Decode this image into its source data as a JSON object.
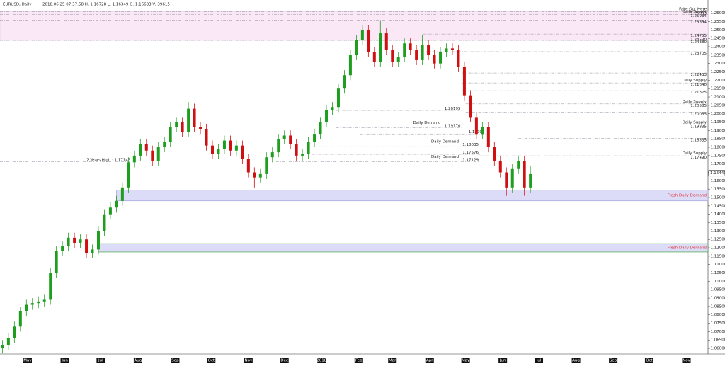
{
  "chart_data": {
    "type": "candlestick",
    "title": "EURUSD, Daily",
    "subtitle": "2018.06.25 07:37:58 H: 1.16728 L: 1.16349 O: 1.16633 V: 39615",
    "xlim": [
      0,
      590
    ],
    "ylim": [
      1.0575,
      1.2645
    ],
    "up_color": "#1e9e1e",
    "down_color": "#d01010",
    "candles": {
      "x": [
        2,
        7,
        12,
        17,
        22,
        27,
        32,
        37,
        42,
        47,
        52,
        57,
        62,
        67,
        72,
        77,
        82,
        87,
        92,
        97,
        102,
        107,
        112,
        117,
        122,
        127,
        132,
        137,
        142,
        147,
        152,
        157,
        162,
        167,
        172,
        177,
        182,
        187,
        192,
        197,
        202,
        207,
        212,
        217,
        222,
        227,
        232,
        237,
        242,
        247,
        252,
        257,
        262,
        267,
        272,
        277,
        282,
        287,
        292,
        297,
        302,
        307,
        312,
        317,
        322,
        327,
        332,
        337,
        342,
        347,
        352,
        357,
        362,
        367,
        372,
        377,
        382,
        387,
        392,
        397,
        402,
        407,
        412,
        417,
        422,
        427,
        432,
        437,
        442
      ],
      "open": [
        1.06,
        1.062,
        1.066,
        1.073,
        1.082,
        1.086,
        1.087,
        1.088,
        1.089,
        1.105,
        1.118,
        1.121,
        1.126,
        1.123,
        1.125,
        1.117,
        1.119,
        1.13,
        1.14,
        1.144,
        1.148,
        1.156,
        1.171,
        1.175,
        1.182,
        1.178,
        1.172,
        1.18,
        1.183,
        1.192,
        1.195,
        1.189,
        1.203,
        1.192,
        1.191,
        1.181,
        1.176,
        1.179,
        1.184,
        1.178,
        1.181,
        1.173,
        1.165,
        1.162,
        1.164,
        1.174,
        1.177,
        1.185,
        1.187,
        1.182,
        1.175,
        1.176,
        1.183,
        1.188,
        1.195,
        1.202,
        1.204,
        1.215,
        1.223,
        1.235,
        1.244,
        1.25,
        1.237,
        1.231,
        1.248,
        1.238,
        1.231,
        1.234,
        1.242,
        1.238,
        1.232,
        1.241,
        1.235,
        1.23,
        1.237,
        1.239,
        1.238,
        1.228,
        1.211,
        1.198,
        1.188,
        1.192,
        1.18,
        1.172,
        1.165,
        1.156,
        1.167,
        1.172,
        1.156
      ],
      "high": [
        1.065,
        1.069,
        1.076,
        1.085,
        1.089,
        1.09,
        1.091,
        1.092,
        1.108,
        1.121,
        1.124,
        1.129,
        1.129,
        1.128,
        1.128,
        1.122,
        1.133,
        1.143,
        1.147,
        1.151,
        1.159,
        1.174,
        1.178,
        1.185,
        1.185,
        1.181,
        1.183,
        1.186,
        1.195,
        1.198,
        1.198,
        1.207,
        1.206,
        1.195,
        1.194,
        1.184,
        1.182,
        1.187,
        1.187,
        1.184,
        1.184,
        1.176,
        1.168,
        1.167,
        1.177,
        1.18,
        1.188,
        1.19,
        1.19,
        1.185,
        1.179,
        1.186,
        1.191,
        1.198,
        1.205,
        1.207,
        1.218,
        1.226,
        1.238,
        1.247,
        1.253,
        1.253,
        1.24,
        1.2555,
        1.251,
        1.241,
        1.237,
        1.245,
        1.245,
        1.241,
        1.247,
        1.244,
        1.238,
        1.24,
        1.242,
        1.242,
        1.241,
        1.231,
        1.214,
        1.201,
        1.195,
        1.195,
        1.183,
        1.175,
        1.168,
        1.17,
        1.175,
        1.175,
        1.169
      ],
      "low": [
        1.057,
        1.059,
        1.063,
        1.07,
        1.079,
        1.083,
        1.084,
        1.085,
        1.086,
        1.102,
        1.115,
        1.118,
        1.12,
        1.12,
        1.114,
        1.114,
        1.116,
        1.127,
        1.137,
        1.141,
        1.145,
        1.153,
        1.168,
        1.172,
        1.175,
        1.169,
        1.169,
        1.177,
        1.18,
        1.189,
        1.186,
        1.186,
        1.189,
        1.188,
        1.178,
        1.173,
        1.173,
        1.176,
        1.175,
        1.175,
        1.17,
        1.162,
        1.156,
        1.159,
        1.161,
        1.171,
        1.174,
        1.182,
        1.179,
        1.172,
        1.172,
        1.173,
        1.18,
        1.185,
        1.192,
        1.199,
        1.201,
        1.212,
        1.22,
        1.232,
        1.241,
        1.234,
        1.228,
        1.228,
        1.235,
        1.228,
        1.228,
        1.231,
        1.235,
        1.229,
        1.229,
        1.232,
        1.227,
        1.227,
        1.234,
        1.235,
        1.225,
        1.208,
        1.195,
        1.185,
        1.185,
        1.177,
        1.169,
        1.162,
        1.151,
        1.153,
        1.164,
        1.151,
        1.153
      ],
      "close": [
        1.062,
        1.066,
        1.073,
        1.082,
        1.086,
        1.087,
        1.088,
        1.089,
        1.105,
        1.118,
        1.121,
        1.126,
        1.123,
        1.125,
        1.117,
        1.119,
        1.13,
        1.14,
        1.144,
        1.148,
        1.156,
        1.171,
        1.175,
        1.182,
        1.178,
        1.172,
        1.18,
        1.183,
        1.192,
        1.195,
        1.189,
        1.203,
        1.192,
        1.191,
        1.181,
        1.176,
        1.179,
        1.184,
        1.178,
        1.181,
        1.173,
        1.165,
        1.162,
        1.164,
        1.174,
        1.177,
        1.185,
        1.187,
        1.182,
        1.175,
        1.176,
        1.183,
        1.188,
        1.195,
        1.202,
        1.204,
        1.215,
        1.223,
        1.235,
        1.244,
        1.25,
        1.237,
        1.231,
        1.248,
        1.238,
        1.231,
        1.234,
        1.242,
        1.238,
        1.232,
        1.241,
        1.235,
        1.23,
        1.237,
        1.239,
        1.238,
        1.228,
        1.211,
        1.198,
        1.188,
        1.192,
        1.18,
        1.172,
        1.165,
        1.156,
        1.167,
        1.172,
        1.156,
        1.164
      ]
    },
    "yticks": [
      {
        "value": 1.06,
        "label": "1.06000"
      },
      {
        "value": 1.065,
        "label": "1.06500"
      },
      {
        "value": 1.07,
        "label": "1.07000"
      },
      {
        "value": 1.075,
        "label": "1.07500"
      },
      {
        "value": 1.08,
        "label": "1.08000"
      },
      {
        "value": 1.085,
        "label": "1.08500"
      },
      {
        "value": 1.09,
        "label": "1.09000"
      },
      {
        "value": 1.095,
        "label": "1.09500"
      },
      {
        "value": 1.1,
        "label": "1.10000"
      },
      {
        "value": 1.105,
        "label": "1.10500"
      },
      {
        "value": 1.11,
        "label": "1.11000"
      },
      {
        "value": 1.115,
        "label": "1.11500"
      },
      {
        "value": 1.12,
        "label": "1.12000"
      },
      {
        "value": 1.125,
        "label": "1.12500"
      },
      {
        "value": 1.13,
        "label": "1.13000"
      },
      {
        "value": 1.135,
        "label": "1.13500"
      },
      {
        "value": 1.14,
        "label": "1.14000"
      },
      {
        "value": 1.145,
        "label": "1.14500"
      },
      {
        "value": 1.15,
        "label": "1.15000"
      },
      {
        "value": 1.155,
        "label": "1.15500"
      },
      {
        "value": 1.16,
        "label": "1.16000"
      },
      {
        "value": 1.165,
        "label": "1.16500"
      },
      {
        "value": 1.17,
        "label": "1.17000"
      },
      {
        "value": 1.175,
        "label": "1.17500"
      },
      {
        "value": 1.18,
        "label": "1.18000"
      },
      {
        "value": 1.185,
        "label": "1.18500"
      },
      {
        "value": 1.19,
        "label": "1.19000"
      },
      {
        "value": 1.195,
        "label": "1.19500"
      },
      {
        "value": 1.2,
        "label": "1.20000"
      },
      {
        "value": 1.205,
        "label": "1.20500"
      },
      {
        "value": 1.21,
        "label": "1.21000"
      },
      {
        "value": 1.215,
        "label": "1.21500"
      },
      {
        "value": 1.22,
        "label": "1.22000"
      },
      {
        "value": 1.225,
        "label": "1.22500"
      },
      {
        "value": 1.23,
        "label": "1.23000"
      },
      {
        "value": 1.235,
        "label": "1.23500"
      },
      {
        "value": 1.24,
        "label": "1.24000"
      },
      {
        "value": 1.245,
        "label": "1.24500"
      },
      {
        "value": 1.25,
        "label": "1.25000"
      },
      {
        "value": 1.255,
        "label": "1.25500"
      },
      {
        "value": 1.26,
        "label": "1.26000"
      }
    ],
    "xticks": [
      {
        "value": 23,
        "label": "May"
      },
      {
        "value": 54,
        "label": "Jun"
      },
      {
        "value": 84,
        "label": "Jul"
      },
      {
        "value": 115,
        "label": "Aug"
      },
      {
        "value": 146,
        "label": "Sep"
      },
      {
        "value": 176,
        "label": "Oct"
      },
      {
        "value": 207,
        "label": "Nov"
      },
      {
        "value": 237,
        "label": "Dec"
      },
      {
        "value": 268,
        "label": "2018"
      },
      {
        "value": 299,
        "label": "Feb"
      },
      {
        "value": 327,
        "label": "Mar"
      },
      {
        "value": 358,
        "label": "Apr"
      },
      {
        "value": 388,
        "label": "May"
      },
      {
        "value": 419,
        "label": "Jun"
      },
      {
        "value": 449,
        "label": "Jul"
      },
      {
        "value": 480,
        "label": "Aug"
      },
      {
        "value": 511,
        "label": "Sep"
      },
      {
        "value": 541,
        "label": "Oct"
      },
      {
        "value": 572,
        "label": "Nov"
      }
    ],
    "zones": [
      {
        "top": 1.26093,
        "bottom": 1.2438,
        "from": 0,
        "color": "#fbe8f7",
        "border": "#e8c8e2"
      },
      {
        "top": 1.1545,
        "bottom": 1.148,
        "from": 97,
        "color": "#dcdcf8",
        "border": "#9a9ad8",
        "text": "Fresh Daily Demand"
      },
      {
        "top": 1.1225,
        "bottom": 1.1175,
        "from": 82,
        "color": "#dcdcf8",
        "border": "#2a9a2a",
        "text": "Fresh Daily Demand"
      }
    ],
    "levels_right": [
      {
        "value": 1.26093,
        "label": "1.26093",
        "text": "Fake Out Here",
        "from": 0
      },
      {
        "value": 1.25934,
        "label": "1.25934",
        "text": "Daily Supply",
        "from": 0
      },
      {
        "value": 1.25594,
        "label": "1.25594",
        "from": 0
      },
      {
        "value": 1.24755,
        "label": "1.24755",
        "from": 352
      },
      {
        "value": 1.2453,
        "label": "1.24530",
        "from": 310
      },
      {
        "value": 1.2438,
        "label": "1.24380",
        "from": 0
      },
      {
        "value": 1.23705,
        "label": "1.23705",
        "from": 355
      },
      {
        "value": 1.22433,
        "label": "1.22433",
        "from": 385
      },
      {
        "value": 1.2184,
        "label": "1.21840",
        "text": "Daily Supply",
        "from": 385
      },
      {
        "value": 1.21375,
        "label": "1.21375",
        "from": 385
      },
      {
        "value": 1.20585,
        "label": "1.20585",
        "text": "Daily Supply",
        "from": 388
      },
      {
        "value": 1.20085,
        "label": "1.20085",
        "from": 388
      },
      {
        "value": 1.19335,
        "label": "1.19335",
        "text": "Daily Supply",
        "from": 395
      },
      {
        "value": 1.18535,
        "label": "1.18535",
        "from": 432
      },
      {
        "value": 1.1749,
        "label": "1.17490",
        "text": "Daily Supply",
        "from": 400
      }
    ],
    "levels_left": [
      {
        "value": 1.20195,
        "label": "1.20195",
        "from": 280,
        "to": 385
      },
      {
        "value": 1.1917,
        "label": "1.19170",
        "text": "Daily Demand",
        "from": 280,
        "to": 385
      },
      {
        "value": 1.18795,
        "label": "1.18795",
        "from": 300,
        "to": 405
      },
      {
        "value": 1.18035,
        "label": "1.18035",
        "text": "Daily Demand",
        "from": 260,
        "to": 400
      },
      {
        "value": 1.17576,
        "label": "1.17576",
        "from": 260,
        "to": 400
      },
      {
        "value": 1.17129,
        "label": "1.17129",
        "text": "Daily Demand",
        "from": 230,
        "to": 400
      },
      {
        "value": 1.17143,
        "label": "2 Years High : 1.17143",
        "from": 0,
        "to": 110
      }
    ],
    "last_price": {
      "value": 1.16449,
      "label": "1.16449"
    }
  }
}
